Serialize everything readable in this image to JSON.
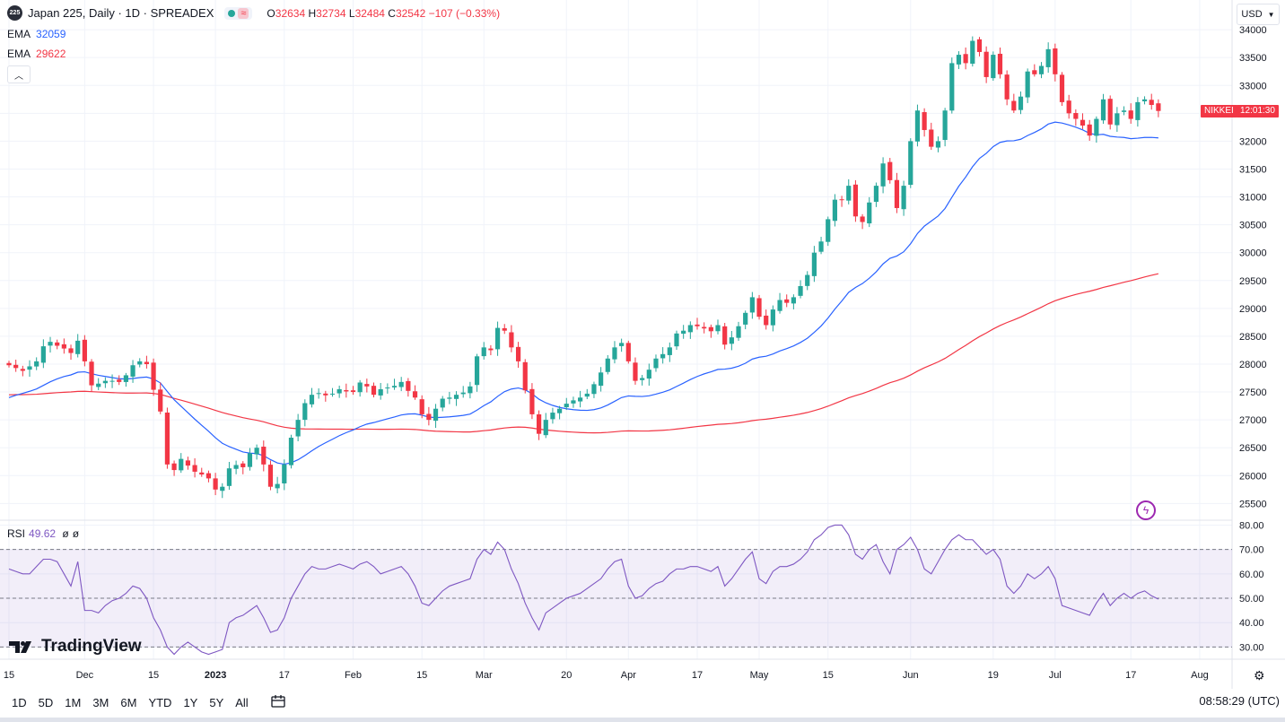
{
  "header": {
    "symbol_badge": "225",
    "title": "Japan 225, Daily · 1D · SPREADEX",
    "ohlc": {
      "o_label": "O",
      "o": "32634",
      "h_label": "H",
      "h": "32734",
      "l_label": "L",
      "l": "32484",
      "c_label": "C",
      "c": "32542",
      "change": "−107 (−0.33%)"
    }
  },
  "indicators": {
    "ema1": {
      "label": "EMA",
      "value": "32059",
      "color": "#2962ff"
    },
    "ema2": {
      "label": "EMA",
      "value": "29622",
      "color": "#f23645"
    },
    "rsi": {
      "label": "RSI",
      "value": "49.62",
      "extra1": "ø",
      "extra2": "ø",
      "color": "#7e57c2"
    }
  },
  "currency": "USD",
  "price_tags": {
    "symbol": "NIKKEI",
    "time": "12:01:30"
  },
  "timeframes": [
    "1D",
    "5D",
    "1M",
    "3M",
    "6M",
    "YTD",
    "1Y",
    "5Y",
    "All"
  ],
  "clock": "08:58:29 (UTC)",
  "brand": "TradingView",
  "colors": {
    "up": "#26a69a",
    "down": "#f23645",
    "ema_fast": "#2962ff",
    "ema_slow": "#f23645",
    "rsi": "#7e57c2",
    "rsi_band": "#7e57c2"
  },
  "chart_data": {
    "type": "candlestick",
    "price_axis": {
      "ticks": [
        25500,
        26000,
        26500,
        27000,
        27500,
        28000,
        28500,
        29000,
        29500,
        30000,
        30500,
        31000,
        31500,
        32000,
        32500,
        33000,
        33500,
        34000
      ],
      "range": [
        25200,
        34050
      ]
    },
    "time_axis_labels": [
      {
        "label": "15",
        "i": 0
      },
      {
        "label": "Dec",
        "i": 11
      },
      {
        "label": "15",
        "i": 21
      },
      {
        "label": "2023",
        "i": 30
      },
      {
        "label": "17",
        "i": 40
      },
      {
        "label": "Feb",
        "i": 50
      },
      {
        "label": "15",
        "i": 60
      },
      {
        "label": "Mar",
        "i": 69
      },
      {
        "label": "20",
        "i": 81
      },
      {
        "label": "Apr",
        "i": 90
      },
      {
        "label": "17",
        "i": 100
      },
      {
        "label": "May",
        "i": 109
      },
      {
        "label": "15",
        "i": 119
      },
      {
        "label": "Jun",
        "i": 131
      },
      {
        "label": "19",
        "i": 143
      },
      {
        "label": "Jul",
        "i": 152
      },
      {
        "label": "17",
        "i": 163
      },
      {
        "label": "Aug",
        "i": 173
      }
    ],
    "closes": [
      27980,
      27930,
      27880,
      27960,
      28050,
      28320,
      28400,
      28330,
      28280,
      28200,
      28420,
      28050,
      27620,
      27650,
      27700,
      27700,
      27680,
      27800,
      27980,
      28050,
      28000,
      27540,
      27150,
      26200,
      26100,
      26300,
      26180,
      26070,
      26020,
      25950,
      25750,
      25800,
      26130,
      26190,
      26150,
      26400,
      26500,
      26200,
      25800,
      25850,
      26200,
      26680,
      27000,
      27300,
      27450,
      27480,
      27440,
      27470,
      27550,
      27510,
      27500,
      27670,
      27600,
      27450,
      27550,
      27580,
      27610,
      27680,
      27520,
      27400,
      27100,
      27000,
      27200,
      27380,
      27400,
      27450,
      27490,
      27600,
      28140,
      28300,
      28250,
      28650,
      28600,
      28300,
      28050,
      27530,
      27100,
      26750,
      27000,
      27130,
      27200,
      27290,
      27350,
      27400,
      27470,
      27640,
      27850,
      28100,
      28300,
      28380,
      28050,
      27700,
      27750,
      27900,
      28100,
      28180,
      28300,
      28550,
      28600,
      28700,
      28680,
      28640,
      28590,
      28700,
      28350,
      28480,
      28680,
      28920,
      29200,
      28850,
      28700,
      28980,
      29150,
      29100,
      29200,
      29400,
      29600,
      30000,
      30200,
      30600,
      30950,
      30950,
      31200,
      30650,
      30550,
      30900,
      31200,
      31600,
      31300,
      30800,
      31200,
      32000,
      32550,
      32200,
      31900,
      32000,
      32550,
      33400,
      33550,
      33400,
      33800,
      33600,
      33150,
      33550,
      33200,
      32750,
      32550,
      32800,
      33250,
      33200,
      33350,
      33650,
      33200,
      32700,
      32500,
      32400,
      32280,
      32100,
      32400,
      32750,
      32300,
      32500,
      32550,
      32400,
      32700,
      32750,
      32650,
      32542
    ],
    "ema_fast": {
      "start": 27400,
      "end": 32059
    },
    "ema_slow": {
      "start": 27450,
      "end": 29622
    },
    "rsi": {
      "range": [
        25,
        82
      ],
      "ticks": [
        30,
        40,
        50,
        60,
        70,
        80
      ],
      "overbought": 70,
      "mid": 50,
      "oversold": 30,
      "values": [
        62,
        61,
        60,
        60,
        63,
        66,
        66,
        65,
        60,
        55,
        65,
        45,
        45,
        44,
        47,
        49,
        50,
        52,
        55,
        54,
        50,
        42,
        37,
        30,
        27,
        30,
        32,
        30,
        28,
        27,
        28,
        29,
        40,
        42,
        43,
        45,
        47,
        42,
        36,
        37,
        42,
        50,
        55,
        60,
        63,
        62,
        62,
        63,
        64,
        63,
        62,
        64,
        65,
        63,
        60,
        61,
        62,
        63,
        60,
        55,
        48,
        47,
        50,
        53,
        55,
        56,
        57,
        58,
        66,
        70,
        68,
        73,
        70,
        62,
        56,
        48,
        42,
        37,
        44,
        46,
        48,
        50,
        51,
        52,
        54,
        56,
        58,
        62,
        65,
        66,
        55,
        50,
        51,
        54,
        56,
        57,
        60,
        62,
        62,
        63,
        63,
        62,
        61,
        63,
        55,
        58,
        62,
        66,
        69,
        58,
        56,
        61,
        63,
        63,
        64,
        66,
        69,
        74,
        76,
        79,
        80,
        80,
        76,
        68,
        66,
        70,
        72,
        65,
        60,
        70,
        72,
        75,
        70,
        62,
        60,
        65,
        70,
        74,
        76,
        74,
        74,
        71,
        68,
        70,
        66,
        55,
        52,
        55,
        60,
        58,
        60,
        63,
        58,
        47,
        46,
        45,
        44,
        43,
        48,
        52,
        47,
        50,
        52,
        50,
        52,
        53,
        51,
        49.62
      ]
    }
  }
}
